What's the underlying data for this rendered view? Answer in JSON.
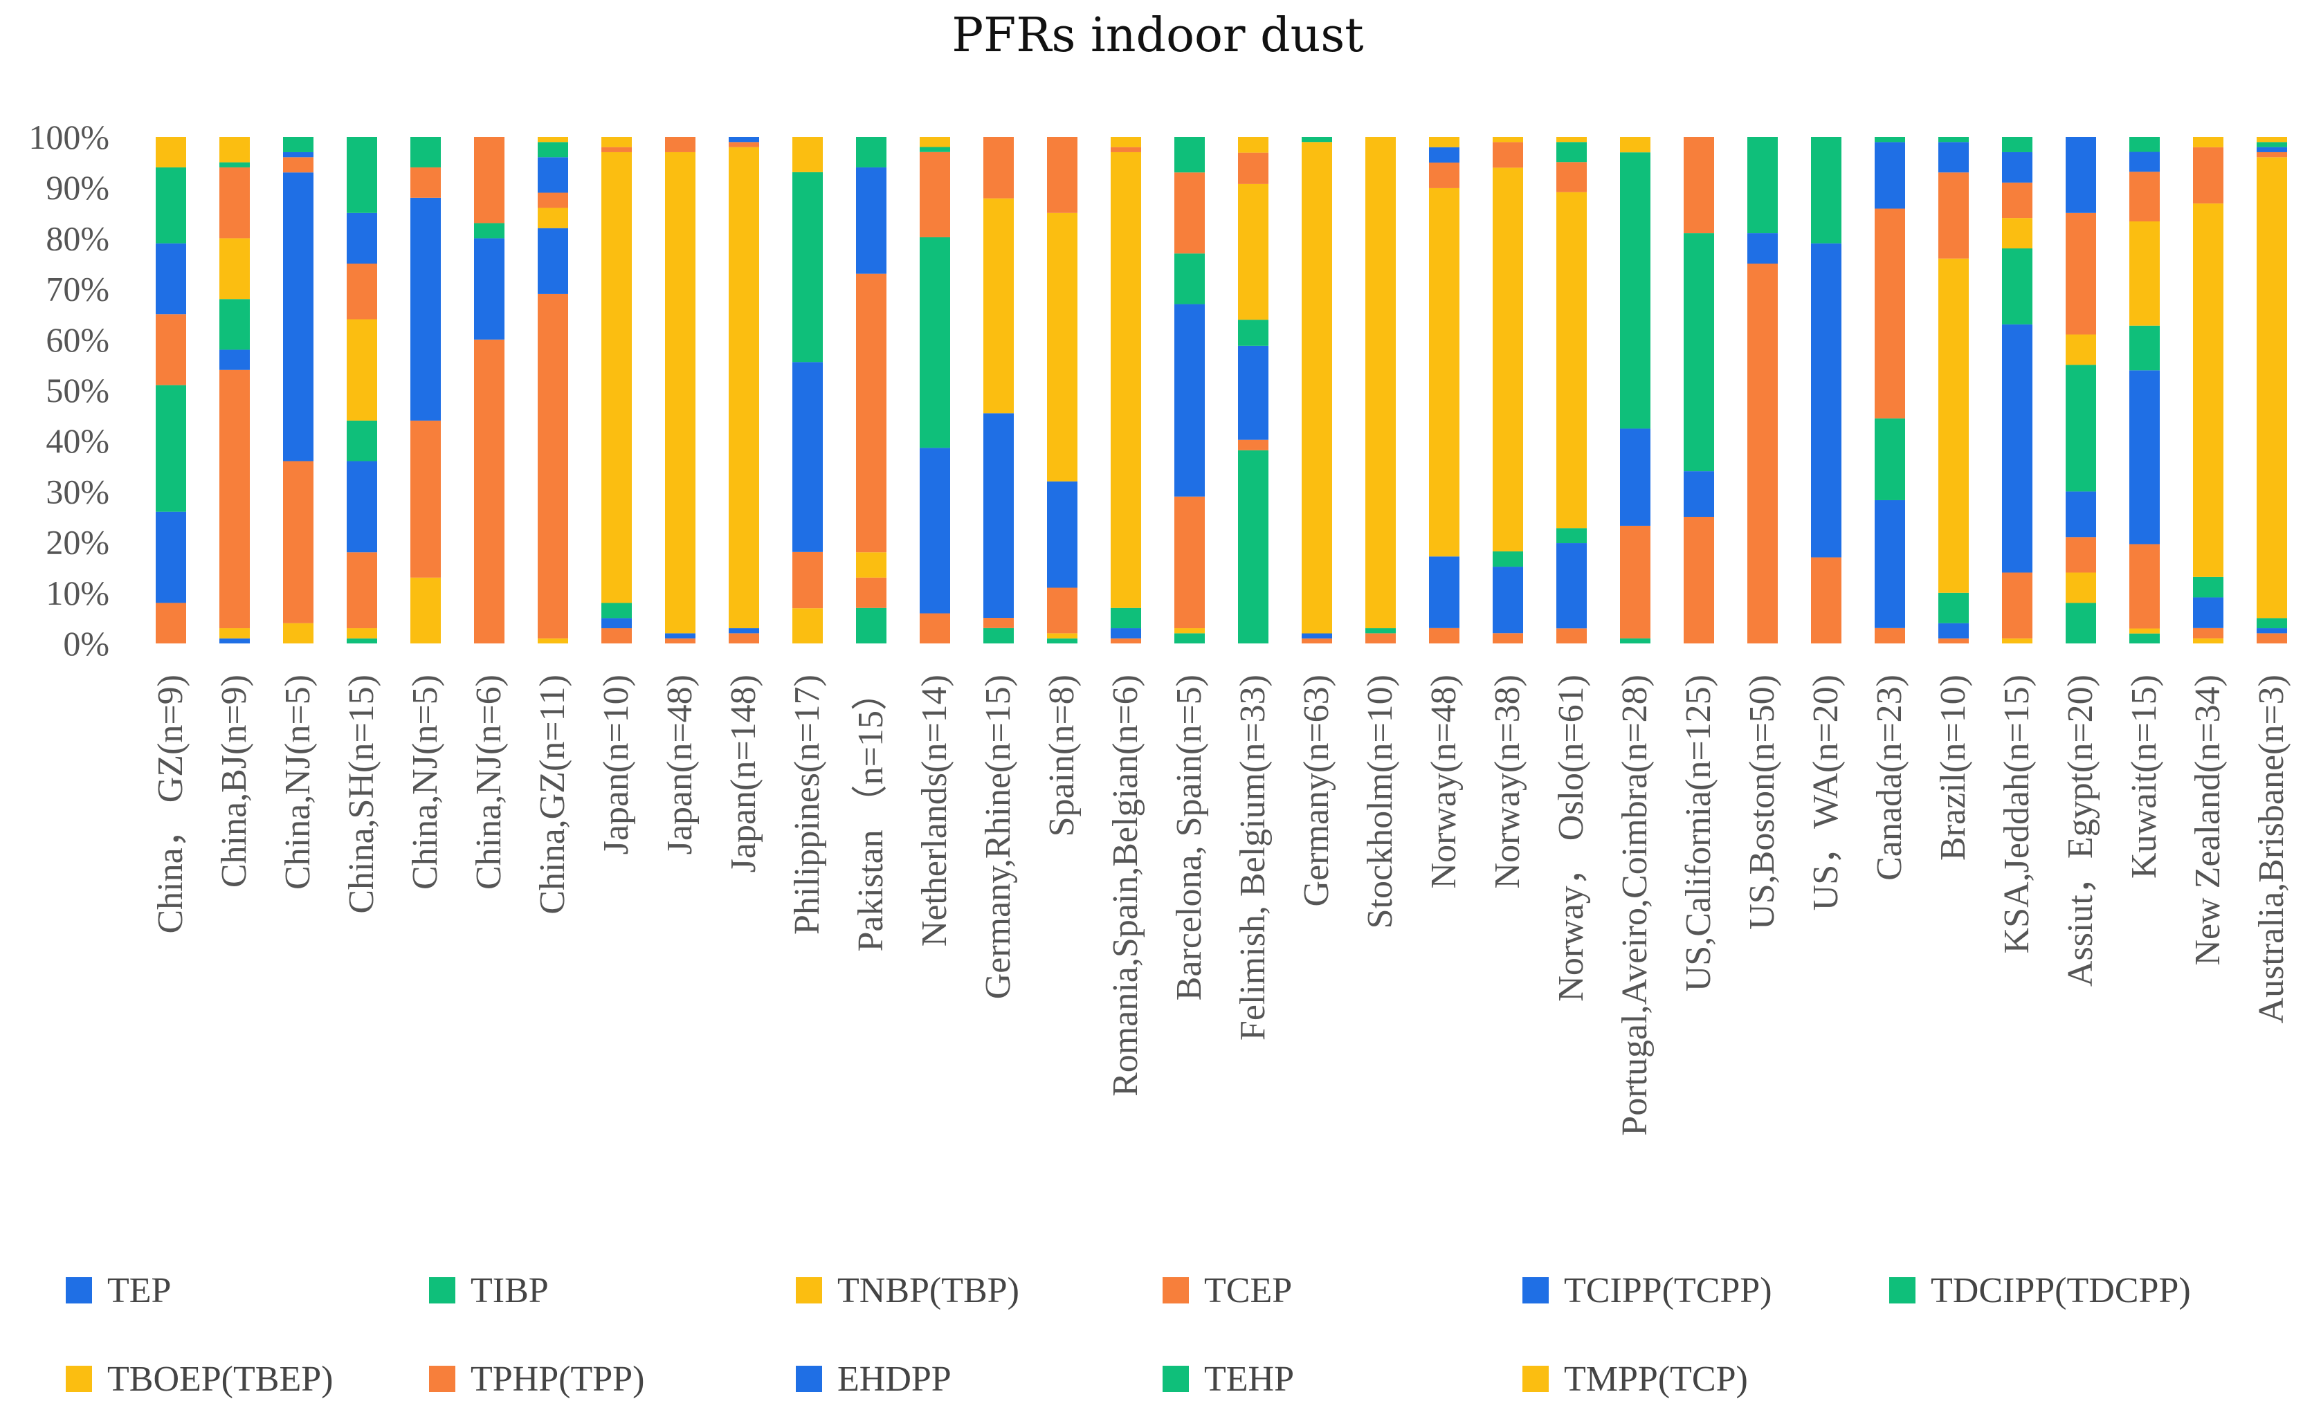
{
  "chart_data": {
    "type": "bar",
    "stacked": "percent",
    "title": "PFRs indoor dust",
    "xlabel": "",
    "ylabel": "",
    "ylim": [
      0,
      100
    ],
    "yticks": [
      "0%",
      "10%",
      "20%",
      "30%",
      "40%",
      "50%",
      "60%",
      "70%",
      "80%",
      "90%",
      "100%"
    ],
    "grid": false,
    "legend_position": "bottom",
    "categories": [
      "China，  GZ(n=9)",
      "China,BJ(n=9)",
      "China,NJ(n=5)",
      "China,SH(n=15)",
      "China,NJ(n=5)",
      "China,NJ(n=6)",
      "China,GZ(n=11)",
      "Japan(n=10)",
      "Japan(n=48)",
      "Japan(n=148)",
      "Philippines(n=17)",
      "Pakistan （n=15）",
      "Netherlands(n=14)",
      "Germany,Rhine(n=15)",
      "Spain(n=8)",
      "Romania,Spain,Belgian(n=6)",
      "Barcelona, Spain(n=5)",
      "Felimish, Belgium(n=33)",
      "Germany(n=63)",
      "Stockholm(n=10)",
      "Norway(n=48)",
      "Norway(n=38)",
      "Norway，  Oslo(n=61)",
      "Portugal,Aveiro,Coimbra(n=28)",
      "US,California(n=125)",
      "US,Boston(n=50)",
      "US，WA(n=20)",
      "Canada(n=23)",
      "Brazil(n=10)",
      "KSA,Jeddah(n=15)",
      "Assiut，Egypt(n=20)",
      "Kuwait(n=15)",
      "New Zealand(n=34)",
      "Australia,Brisbane(n=3)"
    ],
    "series": [
      {
        "name": "TEP",
        "color": "#1f6fe5",
        "values": [
          0,
          1,
          0,
          0,
          0,
          0,
          0,
          0,
          0,
          0,
          0,
          0,
          0,
          0,
          0,
          0,
          0,
          0,
          0,
          0,
          0,
          0,
          0,
          0,
          0,
          0,
          0,
          0,
          0,
          0,
          0,
          0,
          0,
          0
        ]
      },
      {
        "name": "TIBP",
        "color": "#0fbf7a",
        "values": [
          0,
          0,
          0,
          1,
          0,
          0,
          0,
          0,
          0,
          0,
          0,
          7,
          0,
          3,
          1,
          0,
          2,
          37,
          0,
          0,
          0,
          0,
          0,
          1,
          0,
          0,
          0,
          0,
          0,
          0,
          8,
          2,
          0,
          0
        ]
      },
      {
        "name": "TNBP(TBP)",
        "color": "#fbbe11",
        "values": [
          0,
          2,
          4,
          2,
          13,
          0,
          1,
          0,
          0,
          0,
          5,
          0,
          0,
          0,
          1,
          0,
          1,
          0,
          0,
          0,
          0,
          0,
          0,
          0,
          0,
          0,
          0,
          0,
          0,
          1,
          6,
          1,
          1,
          0
        ]
      },
      {
        "name": "TCEP",
        "color": "#f77f3b",
        "values": [
          8,
          51,
          32,
          15,
          31,
          60,
          68,
          3,
          1,
          2,
          8,
          6,
          6,
          2,
          9,
          1,
          26,
          2,
          1,
          2,
          3,
          2,
          3,
          22,
          25,
          75,
          17,
          3,
          1,
          13,
          7,
          17,
          2,
          2
        ]
      },
      {
        "name": "TCIPP(TCPP)",
        "color": "#1f6fe5",
        "values": [
          18,
          4,
          57,
          18,
          44,
          20,
          13,
          2,
          1,
          1,
          27,
          0,
          33,
          40,
          21,
          2,
          38,
          18,
          1,
          0,
          14,
          13,
          17,
          19,
          9,
          6,
          62,
          25,
          3,
          49,
          9,
          35,
          6,
          1
        ]
      },
      {
        "name": "TDCIPP(TDCPP)",
        "color": "#0fbf7a",
        "values": [
          25,
          10,
          0,
          8,
          0,
          3,
          0,
          3,
          0,
          0,
          27,
          0,
          42,
          0,
          0,
          4,
          10,
          5,
          0,
          1,
          0,
          3,
          3,
          54,
          47,
          19,
          21,
          16,
          6,
          15,
          25,
          9,
          4,
          2
        ]
      },
      {
        "name": "TBOEP(TBEP)",
        "color": "#fbbe11",
        "values": [
          0,
          12,
          0,
          20,
          0,
          0,
          4,
          89,
          95,
          95,
          0,
          5,
          0,
          42,
          53,
          90,
          0,
          26,
          98,
          97,
          72,
          75,
          67,
          0,
          0,
          0,
          0,
          0,
          66,
          6,
          6,
          21,
          73,
          91
        ]
      },
      {
        "name": "TPHP(TPP)",
        "color": "#f77f3b",
        "values": [
          14,
          14,
          3,
          11,
          6,
          17,
          3,
          1,
          3,
          1,
          0,
          55,
          17,
          12,
          15,
          1,
          16,
          6,
          0,
          0,
          5,
          5,
          6,
          0,
          19,
          0,
          0,
          41,
          17,
          7,
          24,
          10,
          11,
          1
        ]
      },
      {
        "name": "EHDPP",
        "color": "#1f6fe5",
        "values": [
          14,
          0,
          1,
          10,
          0,
          0,
          7,
          0,
          0,
          1,
          0,
          21,
          0,
          0,
          0,
          0,
          0,
          0,
          0,
          0,
          3,
          0,
          0,
          0,
          0,
          0,
          0,
          13,
          6,
          6,
          15,
          4,
          0,
          1
        ]
      },
      {
        "name": "TEHP",
        "color": "#0fbf7a",
        "values": [
          15,
          1,
          3,
          15,
          6,
          0,
          3,
          0,
          0,
          0,
          0,
          6,
          1,
          0,
          0,
          0,
          7,
          0,
          1,
          0,
          0,
          0,
          4,
          0,
          0,
          0,
          0,
          1,
          1,
          3,
          0,
          3,
          0,
          1
        ]
      },
      {
        "name": "TMPP(TCP)",
        "color": "#fbbe11",
        "values": [
          6,
          5,
          0,
          0,
          0,
          0,
          1,
          2,
          0,
          0,
          5,
          0,
          2,
          0,
          0,
          2,
          0,
          3,
          0,
          0,
          2,
          1,
          1,
          3,
          0,
          0,
          0,
          0,
          0,
          0,
          0,
          0,
          2,
          1
        ]
      }
    ]
  }
}
